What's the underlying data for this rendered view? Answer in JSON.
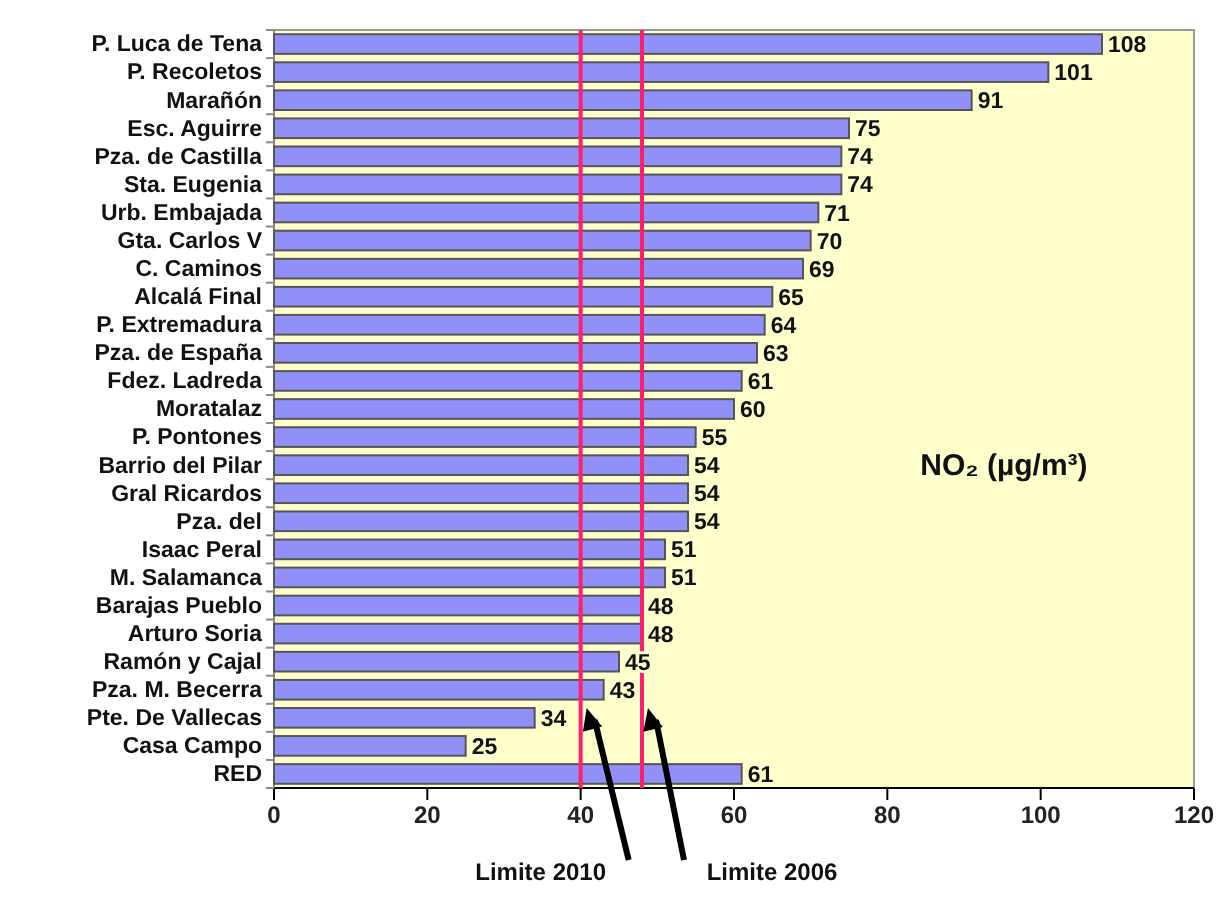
{
  "chart_data": {
    "type": "bar",
    "orientation": "horizontal",
    "categories": [
      "P. Luca de Tena",
      "P. Recoletos",
      "Marañón",
      "Esc. Aguirre",
      "Pza. de Castilla",
      "Sta. Eugenia",
      "Urb. Embajada",
      "Gta. Carlos V",
      "C. Caminos",
      "Alcalá Final",
      "P. Extremadura",
      "Pza. de España",
      "Fdez. Ladreda",
      "Moratalaz",
      "P. Pontones",
      "Barrio del Pilar",
      "Gral Ricardos",
      "Pza. del",
      "Isaac Peral",
      "M. Salamanca",
      "Barajas Pueblo",
      "Arturo Soria",
      "Ramón y Cajal",
      "Pza. M. Becerra",
      "Pte. De Vallecas",
      "Casa Campo",
      "RED"
    ],
    "values": [
      108,
      101,
      91,
      75,
      74,
      74,
      71,
      70,
      69,
      65,
      64,
      63,
      61,
      60,
      55,
      54,
      54,
      54,
      51,
      51,
      48,
      48,
      45,
      43,
      34,
      25,
      61
    ],
    "color": "#9090f8",
    "data_labels": true,
    "xlim": [
      0,
      120
    ],
    "xticks": [
      0,
      20,
      40,
      60,
      80,
      100,
      120
    ],
    "grid": false,
    "ref_lines": [
      {
        "axis": "x",
        "value": 40,
        "label": "Limite 2010",
        "color": "#ff1f6f"
      },
      {
        "axis": "x",
        "value": 48,
        "label": "Limite 2006",
        "color": "#ff1f6f"
      }
    ],
    "annotations": [
      "NO₂ (µg/m³)"
    ]
  }
}
